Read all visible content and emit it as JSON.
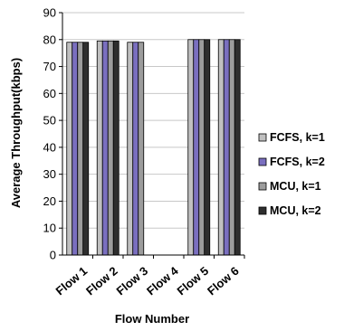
{
  "chart_data": {
    "type": "bar",
    "title": "",
    "xlabel": "Flow Number",
    "ylabel": "Average Throughput(kbps)",
    "ylim": [
      0,
      90
    ],
    "yticks": [
      0,
      10,
      20,
      30,
      40,
      50,
      60,
      70,
      80,
      90
    ],
    "grid": true,
    "legend_position": "right",
    "categories": [
      "Flow 1",
      "Flow 2",
      "Flow 3",
      "Flow 4",
      "Flow 5",
      "Flow 6"
    ],
    "series": [
      {
        "name": "FCFS, k=1",
        "color": "#c0c0c0",
        "values": [
          79,
          79.5,
          79,
          0,
          80,
          80
        ]
      },
      {
        "name": "FCFS, k=2",
        "color": "#7a6fbf",
        "values": [
          79,
          79.5,
          79,
          0,
          80,
          80
        ]
      },
      {
        "name": "MCU, k=1",
        "color": "#9c9c9c",
        "values": [
          79,
          79.5,
          79,
          0,
          80,
          80
        ]
      },
      {
        "name": "MCU, k=2",
        "color": "#2e2e2e",
        "values": [
          79,
          79.5,
          0,
          0,
          80,
          80
        ]
      }
    ]
  }
}
